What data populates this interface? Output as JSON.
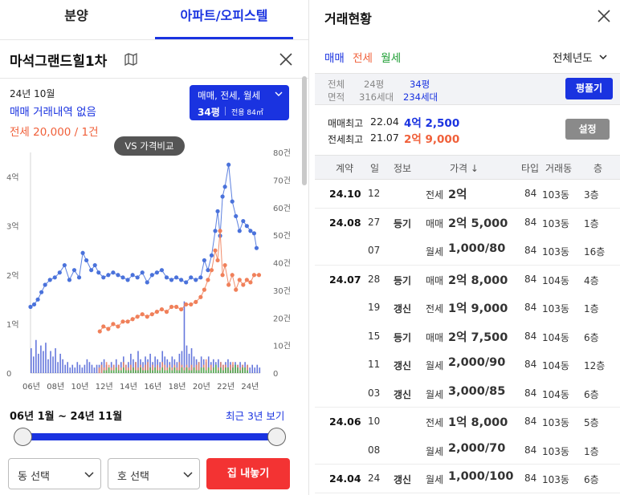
{
  "left": {
    "tabs": [
      "분양",
      "아파트/오피스텔"
    ],
    "apt_title": "마석그랜드힐1차",
    "period": "24년 10월",
    "sale_summary": "매매 거래내역 없음",
    "jeonse_summary": "전세 20,000 / 1건",
    "filter": {
      "types": "매매, 전세, 월세",
      "pyeong": "34평",
      "area": "전용 84㎡"
    },
    "vs_button": "VS 가격비교",
    "range_label": "06년 1월 ~ 24년 11월",
    "recent_link": "최근 3년 보기",
    "dong_select": "동 선택",
    "ho_select": "호 선택",
    "listing_button": "집 내놓기",
    "colors": {
      "accent": "#1a33e0",
      "jeonse": "#f0603a",
      "wolse": "#1e9e34",
      "listing": "#f33333"
    }
  },
  "right": {
    "title": "거래현황",
    "type_tabs": [
      "매매",
      "전세",
      "월세"
    ],
    "year_select": "전체년도",
    "info": {
      "total_label": "전체",
      "area_label": "면적",
      "p24": "24평",
      "h316": "316세대",
      "p34": "34평",
      "h234": "234세대"
    },
    "pyeong_button": "평풀기",
    "sale_max": {
      "label": "매매최고",
      "date": "22.04",
      "value": "4억 2,500"
    },
    "jeonse_max": {
      "label": "전세최고",
      "date": "21.07",
      "value": "2억 9,000"
    },
    "setting_button": "설정",
    "columns": {
      "contract": "계약",
      "day": "일",
      "info": "정보",
      "price": "가격 ↓",
      "type": "타입",
      "dong": "거래동",
      "floor": "층"
    },
    "rows": [
      {
        "month": "24.10",
        "day": "12",
        "info": "",
        "kind": "전세",
        "kind_class": "jeonse",
        "price": "2억",
        "type": "84",
        "dong": "103동",
        "floor": "3층"
      },
      {
        "month": "24.08",
        "day": "27",
        "info": "등기",
        "kind": "매매",
        "kind_class": "sale",
        "price": "2억 5,000",
        "type": "84",
        "dong": "103동",
        "floor": "1층"
      },
      {
        "month": "",
        "day": "07",
        "info": "",
        "kind": "월세",
        "kind_class": "wolse",
        "price": "1,000/80",
        "type": "84",
        "dong": "103동",
        "floor": "16층"
      },
      {
        "month": "24.07",
        "day": "28",
        "info": "등기",
        "kind": "매매",
        "kind_class": "sale",
        "price": "2억 8,000",
        "type": "84",
        "dong": "104동",
        "floor": "4층"
      },
      {
        "month": "",
        "day": "19",
        "info": "갱신",
        "kind": "전세",
        "kind_class": "jeonse",
        "price": "1억 9,000",
        "type": "84",
        "dong": "103동",
        "floor": "1층"
      },
      {
        "month": "",
        "day": "15",
        "info": "등기",
        "kind": "매매",
        "kind_class": "sale",
        "price": "2억 7,500",
        "type": "84",
        "dong": "104동",
        "floor": "6층"
      },
      {
        "month": "",
        "day": "11",
        "info": "갱신",
        "kind": "월세",
        "kind_class": "wolse",
        "price": "2,000/90",
        "type": "84",
        "dong": "104동",
        "floor": "12층"
      },
      {
        "month": "",
        "day": "03",
        "info": "갱신",
        "kind": "월세",
        "kind_class": "wolse",
        "price": "3,000/85",
        "type": "84",
        "dong": "104동",
        "floor": "6층"
      },
      {
        "month": "24.06",
        "day": "10",
        "info": "",
        "kind": "전세",
        "kind_class": "jeonse",
        "price": "1억 8,000",
        "type": "84",
        "dong": "103동",
        "floor": "5층"
      },
      {
        "month": "",
        "day": "08",
        "info": "",
        "kind": "월세",
        "kind_class": "wolse",
        "price": "2,000/70",
        "type": "84",
        "dong": "103동",
        "floor": "1층"
      },
      {
        "month": "24.04",
        "day": "24",
        "info": "갱신",
        "kind": "월세",
        "kind_class": "wolse",
        "price": "1,000/100",
        "type": "84",
        "dong": "103동",
        "floor": "6층"
      }
    ]
  },
  "chart_data": {
    "type": "line",
    "xlabel": "",
    "ylabel": "",
    "x_tick_labels": [
      "06년",
      "08년",
      "10년",
      "12년",
      "14년",
      "16년",
      "18년",
      "20년",
      "22년",
      "24년"
    ],
    "y_left_ticks": [
      "0",
      "1억",
      "2억",
      "3억",
      "4억"
    ],
    "y_right_ticks": [
      "0",
      "10건",
      "20건",
      "30건",
      "40건",
      "50건",
      "60건",
      "70건",
      "80건"
    ],
    "y_left_unit_eok": [
      0,
      4.5
    ],
    "y_right_range": [
      0,
      80
    ],
    "x_range_years": [
      2006,
      2024.9
    ],
    "series": [
      {
        "kind": "sale",
        "color": "#4a72db",
        "points": [
          [
            2006.0,
            1.35
          ],
          [
            2006.3,
            1.4
          ],
          [
            2006.6,
            1.5
          ],
          [
            2006.9,
            1.65
          ],
          [
            2007.2,
            1.8
          ],
          [
            2007.6,
            1.9
          ],
          [
            2008.0,
            1.95
          ],
          [
            2008.4,
            2.05
          ],
          [
            2008.8,
            2.2
          ],
          [
            2009.2,
            1.9
          ],
          [
            2009.6,
            2.1
          ],
          [
            2010.0,
            1.95
          ],
          [
            2010.3,
            2.45
          ],
          [
            2010.6,
            2.3
          ],
          [
            2011.0,
            2.1
          ],
          [
            2011.3,
            2.2
          ],
          [
            2011.6,
            2.05
          ],
          [
            2012.0,
            1.95
          ],
          [
            2012.4,
            2.0
          ],
          [
            2012.8,
            2.05
          ],
          [
            2013.2,
            2.0
          ],
          [
            2013.6,
            1.95
          ],
          [
            2014.0,
            1.9
          ],
          [
            2014.4,
            2.0
          ],
          [
            2014.8,
            1.95
          ],
          [
            2015.2,
            2.05
          ],
          [
            2015.6,
            1.85
          ],
          [
            2016.0,
            2.0
          ],
          [
            2016.4,
            2.05
          ],
          [
            2016.8,
            2.1
          ],
          [
            2017.2,
            1.95
          ],
          [
            2017.6,
            1.9
          ],
          [
            2018.0,
            1.95
          ],
          [
            2018.4,
            1.9
          ],
          [
            2018.8,
            1.85
          ],
          [
            2019.2,
            1.95
          ],
          [
            2019.6,
            1.9
          ],
          [
            2020.0,
            1.95
          ],
          [
            2020.3,
            2.3
          ],
          [
            2020.6,
            2.1
          ],
          [
            2020.9,
            2.4
          ],
          [
            2021.2,
            2.9
          ],
          [
            2021.4,
            3.3
          ],
          [
            2021.6,
            2.8
          ],
          [
            2021.8,
            3.6
          ],
          [
            2022.0,
            3.8
          ],
          [
            2022.3,
            4.25
          ],
          [
            2022.6,
            3.5
          ],
          [
            2022.9,
            3.2
          ],
          [
            2023.2,
            2.9
          ],
          [
            2023.5,
            3.1
          ],
          [
            2023.8,
            3.0
          ],
          [
            2024.1,
            2.9
          ],
          [
            2024.4,
            2.85
          ],
          [
            2024.6,
            2.55
          ]
        ]
      },
      {
        "kind": "jeonse",
        "color": "#f0805a",
        "points": [
          [
            2011.7,
            0.85
          ],
          [
            2012.0,
            0.95
          ],
          [
            2012.4,
            0.9
          ],
          [
            2012.8,
            1.0
          ],
          [
            2013.2,
            0.95
          ],
          [
            2013.6,
            1.05
          ],
          [
            2014.0,
            1.05
          ],
          [
            2014.4,
            1.1
          ],
          [
            2014.8,
            1.15
          ],
          [
            2015.2,
            1.2
          ],
          [
            2015.6,
            1.15
          ],
          [
            2016.0,
            1.2
          ],
          [
            2016.4,
            1.25
          ],
          [
            2016.8,
            1.3
          ],
          [
            2017.2,
            1.25
          ],
          [
            2017.6,
            1.35
          ],
          [
            2018.0,
            1.35
          ],
          [
            2018.4,
            1.3
          ],
          [
            2018.8,
            1.4
          ],
          [
            2019.2,
            1.4
          ],
          [
            2019.6,
            1.45
          ],
          [
            2020.0,
            1.55
          ],
          [
            2020.3,
            1.7
          ],
          [
            2020.6,
            1.9
          ],
          [
            2020.9,
            2.1
          ],
          [
            2021.2,
            2.5
          ],
          [
            2021.4,
            2.3
          ],
          [
            2021.6,
            2.9
          ],
          [
            2021.8,
            2.0
          ],
          [
            2022.0,
            2.2
          ],
          [
            2022.3,
            1.8
          ],
          [
            2022.6,
            2.0
          ],
          [
            2022.9,
            1.7
          ],
          [
            2023.2,
            1.9
          ],
          [
            2023.5,
            1.8
          ],
          [
            2023.8,
            1.9
          ],
          [
            2024.1,
            1.85
          ],
          [
            2024.4,
            2.0
          ],
          [
            2024.8,
            2.0
          ]
        ]
      }
    ],
    "volume_bars": [
      {
        "kind": "sale",
        "color": "#4a5fd6",
        "start": 2006.0,
        "step": 0.2,
        "counts": [
          9,
          6,
          12,
          7,
          10,
          8,
          11,
          5,
          8,
          6,
          9,
          4,
          7,
          5,
          3,
          4,
          2,
          3,
          2,
          4,
          3,
          2,
          3,
          5,
          4,
          3,
          2,
          3,
          3,
          4,
          5,
          3,
          2,
          4,
          3,
          5,
          3,
          4,
          6,
          3,
          4,
          7,
          5,
          4,
          8,
          5,
          4,
          6,
          5,
          7,
          4,
          6,
          5,
          4,
          8,
          6,
          5,
          4,
          6,
          5,
          4,
          7,
          8,
          26,
          10,
          7,
          9,
          6,
          5,
          4,
          6,
          5,
          4,
          6,
          4,
          5,
          4,
          5,
          4,
          3,
          4,
          5,
          4,
          3,
          4,
          3,
          4,
          3,
          4,
          3,
          2,
          3,
          2,
          3,
          2
        ]
      },
      {
        "kind": "jeonse",
        "color": "#f0805a",
        "start": 2011.6,
        "step": 0.2,
        "counts": [
          2,
          3,
          2,
          4,
          3,
          2,
          3,
          2,
          3,
          2,
          4,
          3,
          2,
          3,
          2,
          4,
          2,
          3,
          2,
          3,
          4,
          2,
          3,
          2,
          3,
          2,
          4,
          3,
          2,
          3,
          2,
          3,
          2,
          4,
          3,
          2,
          3,
          2,
          3,
          2,
          3,
          4,
          2,
          3,
          5,
          2,
          3,
          2,
          3,
          2,
          4,
          3,
          3,
          2,
          3,
          4,
          2,
          3,
          2,
          3,
          2,
          3
        ]
      },
      {
        "kind": "wolse",
        "color": "#38b44a",
        "start": 2012.0,
        "step": 0.2,
        "counts": [
          1,
          1,
          2,
          1,
          1,
          2,
          1,
          1,
          2,
          1,
          1,
          1,
          2,
          1,
          1,
          2,
          1,
          1,
          1,
          2,
          1,
          2,
          1,
          1,
          2,
          1,
          1,
          2,
          1,
          2,
          1,
          1,
          2,
          1,
          2,
          1,
          1,
          2,
          1,
          1,
          2,
          2,
          1,
          2,
          1,
          2,
          3,
          1,
          2,
          1,
          2,
          2,
          1,
          2,
          3,
          2,
          1,
          2,
          2,
          1
        ]
      }
    ]
  }
}
